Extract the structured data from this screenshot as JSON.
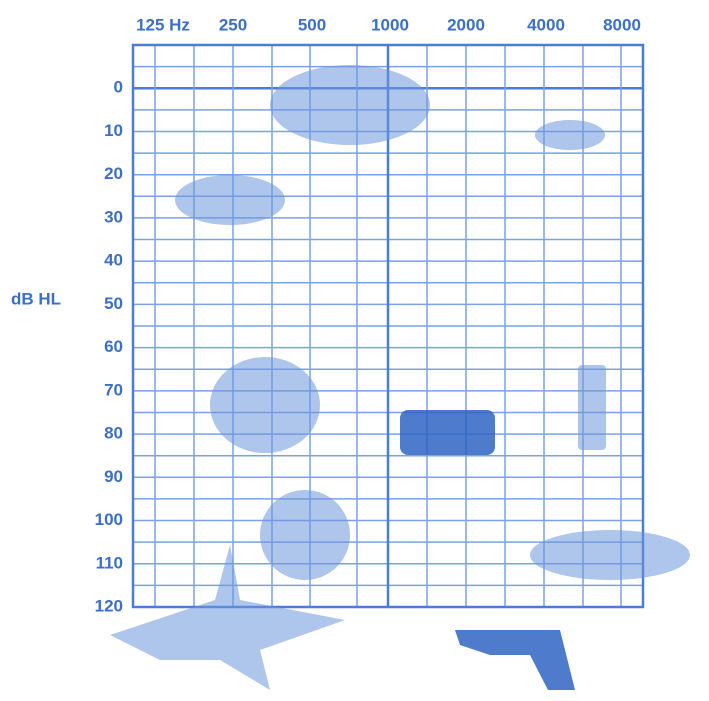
{
  "frequency_labels": [
    "125 Hz",
    "250",
    "500",
    "1000",
    "2000",
    "4000",
    "8000"
  ],
  "level_labels": [
    0,
    10,
    20,
    30,
    40,
    50,
    60,
    70,
    80,
    90,
    100,
    110,
    120
  ],
  "level_axis_label": "dB HL"
}
